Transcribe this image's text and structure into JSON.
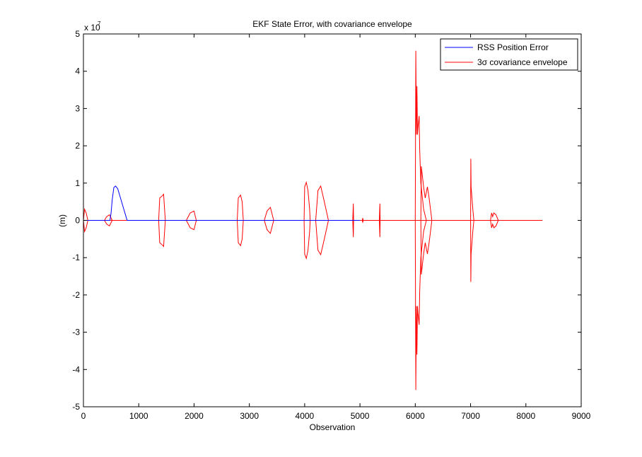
{
  "chart_data": {
    "type": "line",
    "title": "EKF State Error, with covariance envelope",
    "xlabel": "Observation",
    "ylabel": "(m)",
    "y_exponent_label": "x 10",
    "y_exponent_power": "7",
    "xlim": [
      0,
      9000
    ],
    "ylim": [
      -5,
      5
    ],
    "y_scale_note": "values in units of 1e7 m",
    "x_ticks": [
      {
        "v": 0,
        "label": "0"
      },
      {
        "v": 1000,
        "label": "1000"
      },
      {
        "v": 2000,
        "label": "2000"
      },
      {
        "v": 3000,
        "label": "3000"
      },
      {
        "v": 4000,
        "label": "4000"
      },
      {
        "v": 5000,
        "label": "5000"
      },
      {
        "v": 6000,
        "label": "6000"
      },
      {
        "v": 7000,
        "label": "7000"
      },
      {
        "v": 8000,
        "label": "8000"
      },
      {
        "v": 9000,
        "label": "9000"
      }
    ],
    "y_ticks": [
      {
        "v": -5,
        "label": "-5"
      },
      {
        "v": -4,
        "label": "-4"
      },
      {
        "v": -3,
        "label": "-3"
      },
      {
        "v": -2,
        "label": "-2"
      },
      {
        "v": -1,
        "label": "-1"
      },
      {
        "v": 0,
        "label": "0"
      },
      {
        "v": 1,
        "label": "1"
      },
      {
        "v": 2,
        "label": "2"
      },
      {
        "v": 3,
        "label": "3"
      },
      {
        "v": 4,
        "label": "4"
      },
      {
        "v": 5,
        "label": "5"
      }
    ],
    "legend": {
      "position": "top-right",
      "items": [
        {
          "label": "RSS Position Error",
          "color": "#0000ff"
        },
        {
          "label": "3σ covariance envelope",
          "color": "#ff0000"
        }
      ]
    },
    "series": [
      {
        "name": "RSS Position Error",
        "color": "#0000ff",
        "points": [
          [
            0,
            0
          ],
          [
            480,
            0
          ],
          [
            500,
            0.2
          ],
          [
            520,
            0.55
          ],
          [
            550,
            0.88
          ],
          [
            580,
            0.92
          ],
          [
            620,
            0.85
          ],
          [
            670,
            0.6
          ],
          [
            720,
            0.35
          ],
          [
            770,
            0.1
          ],
          [
            790,
            0
          ],
          [
            4000,
            0
          ],
          [
            4150,
            0
          ],
          [
            5000,
            0
          ]
        ]
      },
      {
        "name": "3σ covariance envelope",
        "color": "#ff0000",
        "segments": [
          [
            [
              0,
              0
            ],
            [
              20,
              0.3
            ],
            [
              50,
              0.2
            ],
            [
              80,
              0
            ],
            [
              8300,
              0
            ]
          ],
          [
            [
              0,
              0
            ],
            [
              20,
              -0.3
            ],
            [
              50,
              -0.2
            ],
            [
              80,
              0
            ]
          ],
          [
            [
              380,
              0
            ],
            [
              420,
              0.1
            ],
            [
              470,
              0.15
            ],
            [
              520,
              0
            ]
          ],
          [
            [
              380,
              0
            ],
            [
              420,
              -0.1
            ],
            [
              470,
              -0.15
            ],
            [
              520,
              0
            ]
          ],
          [
            [
              1360,
              0
            ],
            [
              1380,
              0.6
            ],
            [
              1420,
              0.65
            ],
            [
              1450,
              0.7
            ],
            [
              1480,
              0
            ]
          ],
          [
            [
              1360,
              0
            ],
            [
              1380,
              -0.6
            ],
            [
              1420,
              -0.65
            ],
            [
              1450,
              -0.7
            ],
            [
              1480,
              0
            ]
          ],
          [
            [
              1860,
              0
            ],
            [
              1930,
              0.2
            ],
            [
              2000,
              0.25
            ],
            [
              2040,
              0
            ]
          ],
          [
            [
              1860,
              0
            ],
            [
              1930,
              -0.2
            ],
            [
              2000,
              -0.25
            ],
            [
              2040,
              0
            ]
          ],
          [
            [
              2780,
              0
            ],
            [
              2800,
              0.6
            ],
            [
              2840,
              0.68
            ],
            [
              2870,
              0.5
            ],
            [
              2890,
              0
            ]
          ],
          [
            [
              2780,
              0
            ],
            [
              2800,
              -0.6
            ],
            [
              2840,
              -0.68
            ],
            [
              2870,
              -0.5
            ],
            [
              2890,
              0
            ]
          ],
          [
            [
              3270,
              0
            ],
            [
              3320,
              0.25
            ],
            [
              3380,
              0.35
            ],
            [
              3440,
              0
            ]
          ],
          [
            [
              3270,
              0
            ],
            [
              3320,
              -0.25
            ],
            [
              3380,
              -0.35
            ],
            [
              3440,
              0
            ]
          ],
          [
            [
              3990,
              0
            ],
            [
              4000,
              0.9
            ],
            [
              4030,
              1.02
            ],
            [
              4060,
              0.8
            ],
            [
              4090,
              0.3
            ],
            [
              4100,
              0
            ]
          ],
          [
            [
              3990,
              0
            ],
            [
              4000,
              -0.9
            ],
            [
              4030,
              -1.02
            ],
            [
              4060,
              -0.8
            ],
            [
              4090,
              -0.3
            ],
            [
              4100,
              0
            ]
          ],
          [
            [
              4200,
              0
            ],
            [
              4240,
              0.8
            ],
            [
              4290,
              0.92
            ],
            [
              4340,
              0.6
            ],
            [
              4400,
              0.2
            ],
            [
              4430,
              0
            ]
          ],
          [
            [
              4200,
              0
            ],
            [
              4240,
              -0.8
            ],
            [
              4290,
              -0.92
            ],
            [
              4340,
              -0.6
            ],
            [
              4400,
              -0.2
            ],
            [
              4430,
              0
            ]
          ],
          [
            [
              4870,
              0
            ],
            [
              4880,
              0.45
            ],
            [
              4885,
              0
            ]
          ],
          [
            [
              4870,
              0
            ],
            [
              4880,
              -0.45
            ],
            [
              4885,
              0
            ]
          ],
          [
            [
              5040,
              0
            ],
            [
              5050,
              0.05
            ],
            [
              5060,
              0
            ]
          ],
          [
            [
              5040,
              0
            ],
            [
              5050,
              -0.05
            ],
            [
              5060,
              0
            ]
          ],
          [
            [
              5350,
              0
            ],
            [
              5360,
              0.45
            ],
            [
              5365,
              0
            ]
          ],
          [
            [
              5350,
              0
            ],
            [
              5360,
              -0.45
            ],
            [
              5365,
              0
            ]
          ],
          [
            [
              6000,
              0
            ],
            [
              6010,
              4.55
            ],
            [
              6020,
              2.3
            ],
            [
              6030,
              3.6
            ],
            [
              6040,
              2.3
            ],
            [
              6050,
              2.5
            ],
            [
              6070,
              2.8
            ],
            [
              6080,
              1.9
            ],
            [
              6100,
              1.0
            ],
            [
              6150,
              0.3
            ],
            [
              6200,
              0
            ]
          ],
          [
            [
              6000,
              0
            ],
            [
              6010,
              -4.55
            ],
            [
              6020,
              -2.3
            ],
            [
              6030,
              -3.6
            ],
            [
              6040,
              -2.3
            ],
            [
              6050,
              -2.5
            ],
            [
              6070,
              -2.8
            ],
            [
              6080,
              -1.9
            ],
            [
              6100,
              -1.0
            ],
            [
              6150,
              -0.3
            ],
            [
              6200,
              0
            ]
          ],
          [
            [
              6100,
              0
            ],
            [
              6110,
              1.45
            ],
            [
              6150,
              0.9
            ],
            [
              6180,
              0.6
            ],
            [
              6220,
              0.9
            ],
            [
              6250,
              0.6
            ],
            [
              6300,
              0
            ]
          ],
          [
            [
              6100,
              0
            ],
            [
              6110,
              -1.45
            ],
            [
              6150,
              -0.9
            ],
            [
              6180,
              -0.6
            ],
            [
              6220,
              -0.9
            ],
            [
              6250,
              -0.6
            ],
            [
              6300,
              0
            ]
          ],
          [
            [
              7000,
              0
            ],
            [
              7005,
              1.65
            ],
            [
              7010,
              0.9
            ],
            [
              7040,
              0.3
            ],
            [
              7060,
              0
            ]
          ],
          [
            [
              7000,
              0
            ],
            [
              7005,
              -1.65
            ],
            [
              7010,
              -0.9
            ],
            [
              7040,
              -0.3
            ],
            [
              7060,
              0
            ]
          ],
          [
            [
              7360,
              0
            ],
            [
              7380,
              0.2
            ],
            [
              7400,
              0.1
            ],
            [
              7420,
              0.2
            ],
            [
              7460,
              0.15
            ],
            [
              7500,
              0
            ]
          ],
          [
            [
              7360,
              0
            ],
            [
              7380,
              -0.2
            ],
            [
              7400,
              -0.1
            ],
            [
              7420,
              -0.2
            ],
            [
              7460,
              -0.15
            ],
            [
              7500,
              0
            ]
          ]
        ]
      }
    ]
  }
}
